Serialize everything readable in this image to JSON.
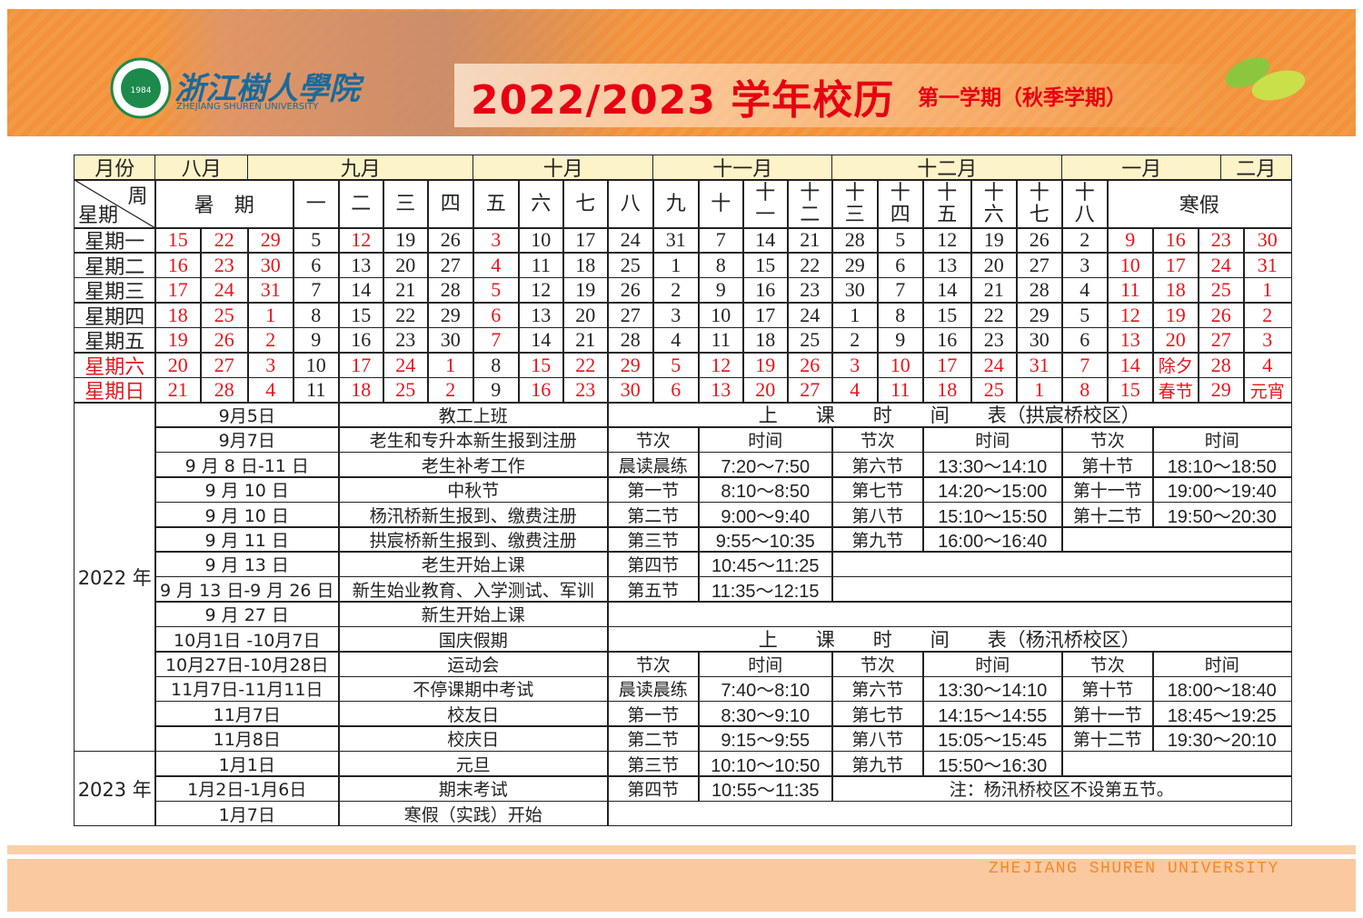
{
  "header": {
    "school_name": "浙江樹人學院",
    "school_name_en": "ZHEJIANG SHUREN UNIVERSITY",
    "seal_year": "1984",
    "title": "2022/2023 学年校历",
    "subtitle": "第一学期（秋季学期）"
  },
  "calendar": {
    "month_label": "月份",
    "months": [
      "八月",
      "九月",
      "十月",
      "十一月",
      "十二月",
      "一月",
      "二月"
    ],
    "week_label": "周",
    "weekday_label": "星期",
    "weeks": [
      "暑　期",
      "一",
      "二",
      "三",
      "四",
      "五",
      "六",
      "七",
      "八",
      "九",
      "十",
      "十一",
      "十二",
      "十三",
      "十四",
      "十五",
      "十六",
      "十七",
      "十八",
      "寒假"
    ],
    "weekdays": [
      "星期一",
      "星期二",
      "星期三",
      "星期四",
      "星期五",
      "星期六",
      "星期日"
    ],
    "days": [
      [
        15,
        22,
        29,
        5,
        12,
        19,
        26,
        3,
        10,
        17,
        24,
        31,
        7,
        14,
        21,
        28,
        5,
        12,
        19,
        26,
        2,
        9,
        16,
        23,
        30
      ],
      [
        16,
        23,
        30,
        6,
        13,
        20,
        27,
        4,
        11,
        18,
        25,
        1,
        8,
        15,
        22,
        29,
        6,
        13,
        20,
        27,
        3,
        10,
        17,
        24,
        31
      ],
      [
        17,
        24,
        31,
        7,
        14,
        21,
        28,
        5,
        12,
        19,
        26,
        2,
        9,
        16,
        23,
        30,
        7,
        14,
        21,
        28,
        4,
        11,
        18,
        25,
        1
      ],
      [
        18,
        25,
        1,
        8,
        15,
        22,
        29,
        6,
        13,
        20,
        27,
        3,
        10,
        17,
        24,
        1,
        8,
        15,
        22,
        29,
        5,
        12,
        19,
        26,
        2
      ],
      [
        19,
        26,
        2,
        9,
        16,
        23,
        30,
        7,
        14,
        21,
        28,
        4,
        11,
        18,
        25,
        2,
        9,
        16,
        23,
        30,
        6,
        13,
        20,
        27,
        3
      ],
      [
        20,
        27,
        3,
        10,
        17,
        24,
        1,
        8,
        15,
        22,
        29,
        5,
        12,
        19,
        26,
        3,
        10,
        17,
        24,
        31,
        7,
        14,
        "除夕",
        28,
        4
      ],
      [
        21,
        28,
        4,
        11,
        18,
        25,
        2,
        9,
        16,
        23,
        30,
        6,
        13,
        20,
        27,
        4,
        11,
        18,
        25,
        1,
        8,
        15,
        "春节",
        29,
        "元宵"
      ]
    ],
    "highlight_color": "#e8141b",
    "highlighted_weekdays": [
      5,
      6
    ],
    "highlighted_columns": [
      [
        0,
        1,
        2,
        4,
        7,
        21,
        22,
        23,
        24
      ],
      [
        0,
        1,
        2,
        7,
        21,
        22,
        23,
        24
      ],
      [
        0,
        1,
        2,
        7,
        21,
        22,
        23,
        24
      ],
      [
        0,
        1,
        2,
        7,
        21,
        22,
        23,
        24
      ],
      [
        0,
        1,
        2,
        7,
        21,
        22,
        23,
        24
      ],
      [
        0,
        1,
        2,
        4,
        5,
        6,
        8,
        9,
        10,
        11,
        12,
        13,
        14,
        15,
        16,
        17,
        18,
        19,
        20,
        21,
        22,
        23,
        24
      ],
      [
        0,
        1,
        2,
        4,
        5,
        6,
        8,
        9,
        10,
        11,
        12,
        13,
        14,
        15,
        16,
        17,
        18,
        19,
        20,
        21,
        22,
        23,
        24
      ]
    ]
  },
  "events": [
    {
      "year": "2022 年",
      "rows": [
        [
          "9月5日",
          "教工上班"
        ],
        [
          "9月7日",
          "老生和专升本新生报到注册"
        ],
        [
          "9 月 8 日-11 日",
          "老生补考工作"
        ],
        [
          "9 月 10 日",
          "中秋节"
        ],
        [
          "9 月 10 日",
          "杨汛桥新生报到、缴费注册"
        ],
        [
          "9 月 11 日",
          "拱宸桥新生报到、缴费注册"
        ],
        [
          "9 月 13 日",
          "老生开始上课"
        ],
        [
          "9 月 13 日-9 月 26 日",
          "新生始业教育、入学测试、军训"
        ],
        [
          "9 月 27 日",
          "新生开始上课"
        ],
        [
          "10月1日 -10月7日",
          "国庆假期"
        ],
        [
          "10月27日-10月28日",
          "运动会"
        ],
        [
          "11月7日-11月11日",
          "不停课期中考试"
        ],
        [
          "11月7日",
          "校友日"
        ],
        [
          "11月8日",
          "校庆日"
        ]
      ]
    },
    {
      "year": "2023 年",
      "rows": [
        [
          "1月1日",
          "元旦"
        ],
        [
          "1月2日-1月6日",
          "期末考试"
        ],
        [
          "1月7日",
          "寒假（实践）开始"
        ]
      ]
    }
  ],
  "timetables": [
    {
      "title": "上　　课　　时　　间　　表（拱宸桥校区）",
      "headers": [
        "节次",
        "时间",
        "节次",
        "时间",
        "节次",
        "时间"
      ],
      "rows": [
        [
          "晨读晨练",
          "7:20～7:50",
          "第六节",
          "13:30～14:10",
          "第十节",
          "18:10～18:50"
        ],
        [
          "第一节",
          "8:10～8:50",
          "第七节",
          "14:20～15:00",
          "第十一节",
          "19:00～19:40"
        ],
        [
          "第二节",
          "9:00～9:40",
          "第八节",
          "15:10～15:50",
          "第十二节",
          "19:50～20:30"
        ],
        [
          "第三节",
          "9:55～10:35",
          "第九节",
          "16:00～16:40"
        ],
        [
          "第四节",
          "10:45～11:25"
        ],
        [
          "第五节",
          "11:35～12:15"
        ]
      ]
    },
    {
      "title": "上　　课　　时　　间　　表（杨汛桥校区）",
      "headers": [
        "节次",
        "时间",
        "节次",
        "时间",
        "节次",
        "时间"
      ],
      "rows": [
        [
          "晨读晨练",
          "7:40～8:10",
          "第六节",
          "13:30～14:10",
          "第十节",
          "18:00～18:40"
        ],
        [
          "第一节",
          "8:30～9:10",
          "第七节",
          "14:15～14:55",
          "第十一节",
          "18:45～19:25"
        ],
        [
          "第二节",
          "9:15～9:55",
          "第八节",
          "15:05～15:45",
          "第十二节",
          "19:30～20:10"
        ],
        [
          "第三节",
          "10:10～10:50",
          "第九节",
          "15:50～16:30"
        ],
        [
          "第四节",
          "10:55～11:35"
        ]
      ],
      "note": "注：杨汛桥校区不设第五节。"
    }
  ],
  "footer": {
    "text": "ZHEJIANG SHUREN UNIVERSITY"
  }
}
